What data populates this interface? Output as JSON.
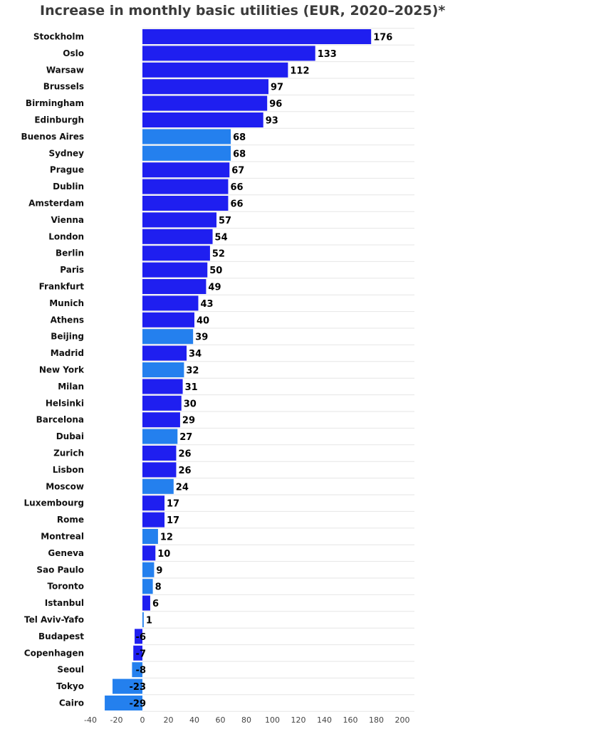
{
  "chart_data": {
    "type": "bar",
    "orientation": "horizontal",
    "title": "Increase in monthly basic utilities (EUR, 2020–2025)*",
    "xlabel": "",
    "ylabel": "",
    "xlim": [
      -40,
      200
    ],
    "x_ticks": [
      "-40",
      "-20",
      "0",
      "20",
      "40",
      "60",
      "80",
      "100",
      "120",
      "140",
      "160",
      "180",
      "200"
    ],
    "grid": true,
    "colors": {
      "primary": "#1f1ff0",
      "secondary": "#2480ee"
    },
    "categories": [
      "Stockholm",
      "Oslo",
      "Warsaw",
      "Brussels",
      "Birmingham",
      "Edinburgh",
      "Buenos Aires",
      "Sydney",
      "Prague",
      "Dublin",
      "Amsterdam",
      "Vienna",
      "London",
      "Berlin",
      "Paris",
      "Frankfurt",
      "Munich",
      "Athens",
      "Beijing",
      "Madrid",
      "New York",
      "Milan",
      "Helsinki",
      "Barcelona",
      "Dubai",
      "Zurich",
      "Lisbon",
      "Moscow",
      "Luxembourg",
      "Rome",
      "Montreal",
      "Geneva",
      "Sao Paulo",
      "Toronto",
      "Istanbul",
      "Tel Aviv-Yafo",
      "Budapest",
      "Copenhagen",
      "Seoul",
      "Tokyo",
      "Cairo"
    ],
    "values": [
      176,
      133,
      112,
      97,
      96,
      93,
      68,
      68,
      67,
      66,
      66,
      57,
      54,
      52,
      50,
      49,
      43,
      40,
      39,
      34,
      32,
      31,
      30,
      29,
      27,
      26,
      26,
      24,
      17,
      17,
      12,
      10,
      9,
      8,
      6,
      1,
      -6,
      -7,
      -8,
      -23,
      -29
    ],
    "value_labels": [
      "176",
      "133",
      "112",
      "97",
      "96",
      "93",
      "68",
      "68",
      "67",
      "66",
      "66",
      "57",
      "54",
      "52",
      "50",
      "49",
      "43",
      "40",
      "39",
      "34",
      "32",
      "31",
      "30",
      "29",
      "27",
      "26",
      "26",
      "24",
      "17",
      "17",
      "12",
      "10",
      "9",
      "8",
      "6",
      "1",
      "-6",
      "-7",
      "-8",
      "-23",
      "-29"
    ],
    "bar_color_group": [
      "primary",
      "primary",
      "primary",
      "primary",
      "primary",
      "primary",
      "secondary",
      "secondary",
      "primary",
      "primary",
      "primary",
      "primary",
      "primary",
      "primary",
      "primary",
      "primary",
      "primary",
      "primary",
      "secondary",
      "primary",
      "secondary",
      "primary",
      "primary",
      "primary",
      "secondary",
      "primary",
      "primary",
      "secondary",
      "primary",
      "primary",
      "secondary",
      "primary",
      "secondary",
      "secondary",
      "primary",
      "secondary",
      "primary",
      "primary",
      "secondary",
      "secondary",
      "secondary"
    ]
  }
}
